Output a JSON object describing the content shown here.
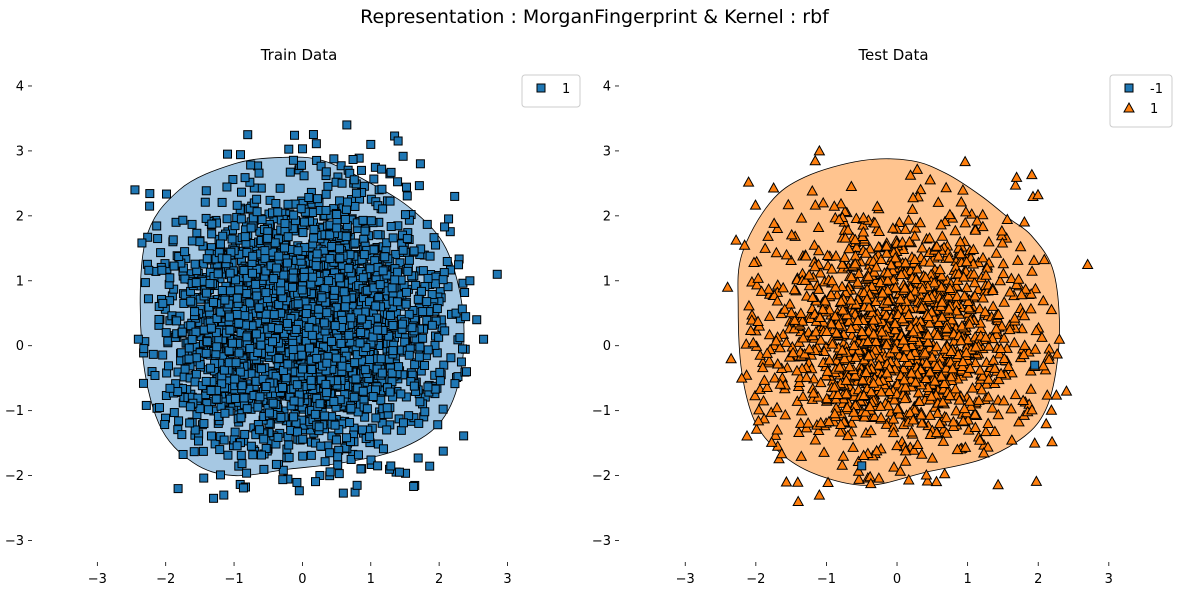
{
  "figure": {
    "suptitle": "Representation : MorganFingerprint & Kernel : rbf"
  },
  "colors": {
    "class_neg": "#1f77b4",
    "class_pos": "#ff7f0e",
    "region_neg": "#a6c8e3",
    "region_pos": "#ffc48f"
  },
  "chart_data": [
    {
      "type": "scatter",
      "title": "Train Data",
      "xlabel": "",
      "ylabel": "",
      "xlim": [
        -3.4,
        3.3
      ],
      "ylim": [
        -3.3,
        4.4
      ],
      "xticks": [
        -3,
        -2,
        -1,
        0,
        1,
        2,
        3
      ],
      "yticks": [
        -3,
        -2,
        -1,
        0,
        1,
        2,
        3,
        4
      ],
      "grid": false,
      "legend": "top-right",
      "legend_entries": [
        {
          "label": "1",
          "marker": "square",
          "color": "#1f77b4"
        }
      ],
      "decision_region": {
        "color": "#a6c8e3",
        "outline_x": [
          -2.3,
          -1.8,
          -1.0,
          -0.3,
          0.3,
          1.0,
          1.6,
          2.1,
          2.35,
          2.3,
          2.0,
          1.4,
          0.6,
          -0.2,
          -1.0,
          -1.6,
          -2.1,
          -2.35
        ],
        "outline_y": [
          1.6,
          2.4,
          2.8,
          2.9,
          2.85,
          2.5,
          2.1,
          1.5,
          0.5,
          -0.5,
          -1.2,
          -1.6,
          -1.8,
          -1.9,
          -2.0,
          -1.8,
          -1.2,
          0.0
        ]
      },
      "series": [
        {
          "name": "1",
          "marker": "square",
          "color": "#1f77b4",
          "count": 3000,
          "center": [
            0.0,
            0.3
          ],
          "spread": [
            1.0,
            1.0
          ],
          "clip": {
            "x": [
              -2.4,
              2.4
            ],
            "y": [
              -2.3,
              3.3
            ]
          },
          "outliers": [
            [
              -2.45,
              2.4
            ],
            [
              2.85,
              1.1
            ],
            [
              2.65,
              0.1
            ],
            [
              0.65,
              3.4
            ],
            [
              -0.8,
              3.25
            ],
            [
              1.0,
              3.1
            ],
            [
              -1.3,
              -2.35
            ],
            [
              -1.15,
              -2.3
            ],
            [
              0.8,
              -2.15
            ],
            [
              1.1,
              -1.85
            ],
            [
              2.55,
              0.4
            ],
            [
              2.45,
              1.0
            ],
            [
              -2.4,
              0.1
            ],
            [
              2.4,
              -0.4
            ]
          ]
        }
      ]
    },
    {
      "type": "scatter",
      "title": "Test Data",
      "xlabel": "",
      "ylabel": "",
      "xlim": [
        -3.4,
        3.3
      ],
      "ylim": [
        -3.3,
        4.4
      ],
      "xticks": [
        -3,
        -2,
        -1,
        0,
        1,
        2,
        3
      ],
      "yticks": [
        -3,
        -2,
        -1,
        0,
        1,
        2,
        3,
        4
      ],
      "grid": false,
      "legend": "top-right",
      "legend_entries": [
        {
          "label": "-1",
          "marker": "square",
          "color": "#1f77b4"
        },
        {
          "label": "1",
          "marker": "triangle",
          "color": "#ff7f0e"
        }
      ],
      "decision_region": {
        "color": "#ffc48f",
        "outline_x": [
          -2.2,
          -1.8,
          -1.3,
          -0.5,
          0.2,
          0.7,
          1.2,
          1.6,
          1.9,
          2.2,
          2.3,
          2.25,
          2.1,
          1.8,
          1.2,
          0.4,
          -0.4,
          -1.1,
          -1.6,
          -2.0,
          -2.2,
          -2.25
        ],
        "outline_y": [
          1.4,
          2.2,
          2.6,
          2.85,
          2.85,
          2.65,
          2.3,
          1.95,
          1.7,
          1.2,
          0.4,
          -0.4,
          -1.0,
          -1.4,
          -1.75,
          -1.95,
          -2.15,
          -2.0,
          -1.7,
          -1.2,
          -0.4,
          0.6
        ]
      },
      "series": [
        {
          "name": "1",
          "marker": "triangle",
          "color": "#ff7f0e",
          "count": 1600,
          "center": [
            0.0,
            0.2
          ],
          "spread": [
            0.95,
            0.95
          ],
          "clip": {
            "x": [
              -2.3,
              2.3
            ],
            "y": [
              -2.2,
              2.9
            ]
          },
          "outliers": [
            [
              -1.1,
              3.0
            ],
            [
              -2.4,
              0.9
            ],
            [
              2.7,
              1.25
            ],
            [
              2.3,
              0.1
            ],
            [
              2.4,
              -0.7
            ],
            [
              -1.4,
              -2.4
            ],
            [
              -1.1,
              -2.3
            ],
            [
              1.95,
              -1.5
            ],
            [
              -2.35,
              -0.2
            ],
            [
              -2.2,
              -0.5
            ]
          ]
        },
        {
          "name": "-1",
          "marker": "square",
          "color": "#1f77b4",
          "count": 0,
          "points": [
            [
              -0.5,
              -1.85
            ],
            [
              1.95,
              -0.3
            ]
          ]
        }
      ]
    }
  ]
}
